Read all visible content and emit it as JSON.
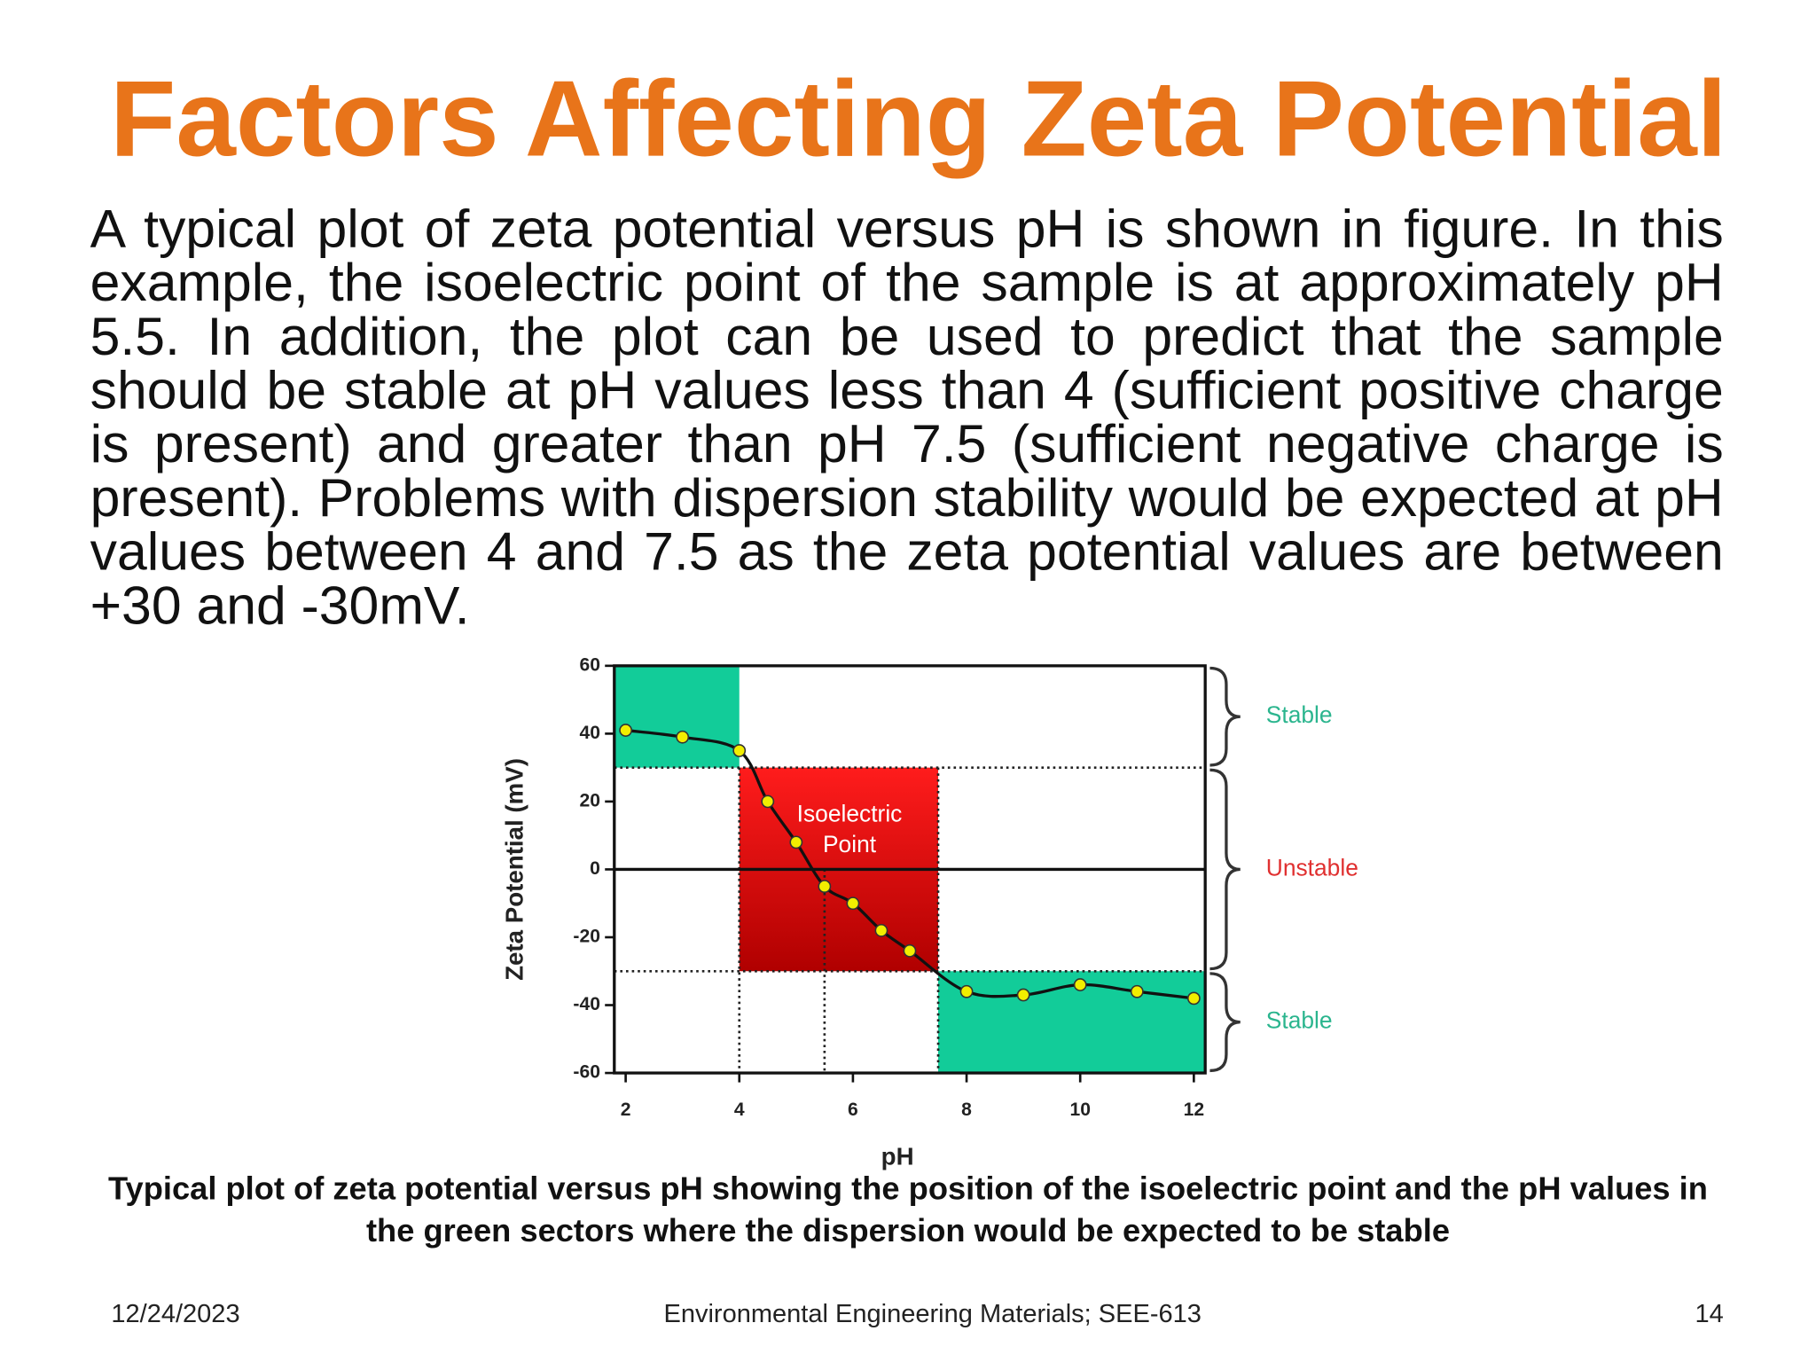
{
  "slide": {
    "title": "Factors Affecting Zeta Potential",
    "body": "A typical plot of zeta potential versus pH is shown in figure. In this example, the isoelectric point of the sample is at approximately pH 5.5. In addition, the plot can be used to predict that the sample should be stable at pH values less than 4 (sufficient positive charge is present) and greater than pH 7.5 (sufficient negative charge is present). Problems with dispersion stability would be expected at pH values between 4 and 7.5 as the zeta potential values are between +30 and -30mV.",
    "caption": "Typical plot of zeta potential versus pH showing the position of the isoelectric point and the pH values in the green sectors where the dispersion would be expected to be stable",
    "date": "12/24/2023",
    "footer": "Environmental Engineering Materials; SEE-613",
    "page_number": 14
  },
  "chart_data": {
    "type": "line",
    "x_label": "pH",
    "y_label": "Zeta Potential (mV)",
    "x": [
      2,
      3,
      4,
      4.5,
      5,
      5.5,
      6,
      6.5,
      7,
      8,
      9,
      10,
      11,
      12
    ],
    "series": [
      {
        "color": "#f2ee00",
        "values": [
          41,
          39,
          35,
          20,
          8,
          -5,
          -10,
          -18,
          -24,
          -36,
          -37,
          -34,
          -36,
          -38
        ]
      }
    ],
    "smooth": true,
    "xlim": [
      1.8,
      12.2
    ],
    "ylim": [
      -60,
      60
    ],
    "xticks": [
      2,
      4,
      6,
      8,
      10,
      12
    ],
    "yticks": [
      -60,
      -40,
      -20,
      0,
      20,
      40,
      60
    ],
    "stable_ph": [
      4,
      7.5
    ],
    "isoelectric_ph": 5.5,
    "annotation": [
      "Isoelectric",
      "Point"
    ],
    "bands": [
      {
        "label": "Stable",
        "y": [
          30,
          60
        ],
        "color": "#12cc99",
        "label_color": "#2bb58e"
      },
      {
        "label": "Unstable",
        "y": [
          -30,
          30
        ],
        "color": "#ee1c1c",
        "label_color": "#e03030"
      },
      {
        "label": "Stable",
        "y": [
          -60,
          -30
        ],
        "color": "#12cc99",
        "label_color": "#2bb58e"
      }
    ]
  }
}
